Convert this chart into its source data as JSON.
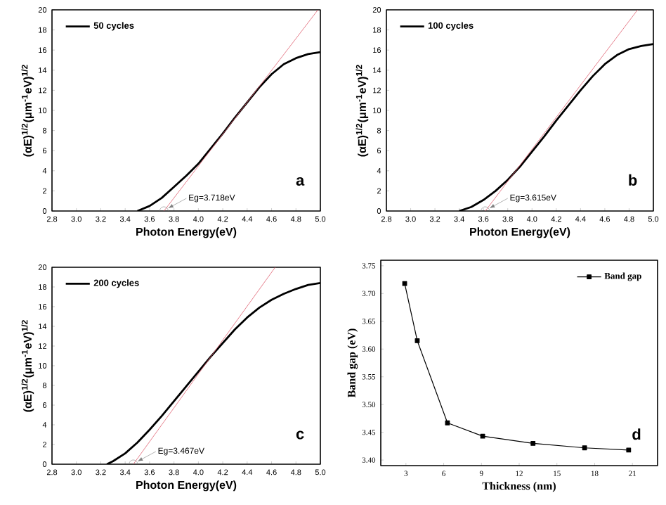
{
  "chart_data": [
    {
      "type": "line",
      "xlabel": "Photon Energy(eV)",
      "ylabel": "(αE)$^{1/2}$(μm$^{-1}$eV)$^{1/2}$",
      "xlim": [
        2.8,
        5.0
      ],
      "ylim": [
        0,
        20
      ],
      "xticks": [
        2.8,
        {
          "value": 3,
          "label": "3.0"
        },
        3.2,
        3.4,
        3.6,
        3.8,
        {
          "value": 4,
          "label": "4.0"
        },
        4.2,
        4.4,
        4.6,
        4.8,
        {
          "value": 5,
          "label": "5.0"
        }
      ],
      "yticks": [
        0,
        2,
        4,
        6,
        8,
        10,
        12,
        14,
        16,
        18,
        20
      ],
      "legend": "top left",
      "series": [
        {
          "name": "50 cycles",
          "color": "#000000",
          "x": [
            3.5,
            3.6,
            3.7,
            3.8,
            3.9,
            4.0,
            4.1,
            4.2,
            4.3,
            4.4,
            4.5,
            4.6,
            4.7,
            4.8,
            4.9,
            5.0
          ],
          "values": [
            0,
            0.5,
            1.3,
            2.4,
            3.5,
            4.7,
            6.2,
            7.7,
            9.3,
            10.8,
            12.3,
            13.6,
            14.6,
            15.2,
            15.6,
            15.8
          ]
        },
        {
          "type": "line",
          "color": "#e06070",
          "x": [
            3.718,
            4.98
          ],
          "values": [
            0,
            20
          ]
        }
      ],
      "annotations": [
        {
          "text": "Eg=3.718eV",
          "x": 3.718,
          "y": 0
        },
        "a"
      ]
    },
    {
      "type": "line",
      "xlabel": "Photon Energy(eV)",
      "ylabel": "(αE)$^{1/2}$(μm$^{-1}$eV)$^{1/2}$",
      "xlim": [
        2.8,
        5.0
      ],
      "ylim": [
        0,
        20
      ],
      "xticks": [
        2.8,
        {
          "value": 3,
          "label": "3.0"
        },
        3.2,
        3.4,
        3.6,
        3.8,
        {
          "value": 4,
          "label": "4.0"
        },
        4.2,
        4.4,
        4.6,
        4.8,
        {
          "value": 5,
          "label": "5.0"
        }
      ],
      "yticks": [
        0,
        2,
        4,
        6,
        8,
        10,
        12,
        14,
        16,
        18,
        20
      ],
      "legend": "top left",
      "series": [
        {
          "name": "100 cycles",
          "color": "#000000",
          "x": [
            3.4,
            3.5,
            3.6,
            3.7,
            3.8,
            3.9,
            4.0,
            4.1,
            4.2,
            4.3,
            4.4,
            4.5,
            4.6,
            4.7,
            4.8,
            4.9,
            5.0
          ],
          "values": [
            0,
            0.4,
            1.1,
            2.0,
            3.1,
            4.4,
            5.9,
            7.4,
            9.0,
            10.5,
            12.0,
            13.4,
            14.6,
            15.5,
            16.1,
            16.4,
            16.6
          ]
        },
        {
          "type": "line",
          "color": "#e06070",
          "x": [
            3.615,
            4.87
          ],
          "values": [
            0,
            20
          ]
        }
      ],
      "annotations": [
        {
          "text": "Eg=3.615eV",
          "x": 3.615,
          "y": 0
        },
        "b"
      ]
    },
    {
      "type": "line",
      "xlabel": "Photon Energy(eV)",
      "ylabel": "(αE)$^{1/2}$(μm$^{-1}$eV)$^{1/2}$",
      "xlim": [
        2.8,
        5.0
      ],
      "ylim": [
        0,
        20
      ],
      "xticks": [
        2.8,
        {
          "value": 3,
          "label": "3.0"
        },
        3.2,
        3.4,
        3.6,
        3.8,
        {
          "value": 4,
          "label": "4.0"
        },
        4.2,
        4.4,
        4.6,
        4.8,
        {
          "value": 5,
          "label": "5.0"
        }
      ],
      "yticks": [
        0,
        2,
        4,
        6,
        8,
        10,
        12,
        14,
        16,
        18,
        20
      ],
      "legend": "top left",
      "series": [
        {
          "name": "200 cycles",
          "color": "#000000",
          "x": [
            3.25,
            3.3,
            3.4,
            3.5,
            3.6,
            3.7,
            3.8,
            3.9,
            4.0,
            4.1,
            4.2,
            4.3,
            4.4,
            4.5,
            4.6,
            4.7,
            4.8,
            4.9,
            5.0
          ],
          "values": [
            0,
            0.3,
            1.1,
            2.2,
            3.5,
            4.9,
            6.4,
            7.9,
            9.4,
            10.9,
            12.3,
            13.7,
            14.9,
            15.9,
            16.7,
            17.3,
            17.8,
            18.2,
            18.4
          ]
        },
        {
          "type": "line",
          "color": "#e06070",
          "x": [
            3.467,
            4.63
          ],
          "values": [
            0,
            20
          ]
        }
      ],
      "annotations": [
        {
          "text": "Eg=3.467eV",
          "x": 3.467,
          "y": 0
        },
        "c"
      ]
    },
    {
      "type": "line",
      "xlabel": "Thickness (nm)",
      "ylabel": "Band gap (eV)",
      "xlim": [
        1,
        23
      ],
      "ylim": [
        3.39,
        3.76
      ],
      "xticks": [
        3,
        6,
        9,
        12,
        15,
        18,
        21
      ],
      "yticks": [
        {
          "value": 3.4,
          "label": "3.40"
        },
        3.45,
        {
          "value": 3.5,
          "label": "3.50"
        },
        3.55,
        {
          "value": 3.6,
          "label": "3.60"
        },
        3.65,
        {
          "value": 3.7,
          "label": "3.70"
        },
        3.75
      ],
      "legend": "top right",
      "marker": "square",
      "series": [
        {
          "name": "Band gap",
          "color": "#000000",
          "x": [
            2.9,
            3.9,
            6.3,
            9.1,
            13.1,
            17.2,
            20.7
          ],
          "values": [
            3.718,
            3.615,
            3.467,
            3.443,
            3.43,
            3.422,
            3.418
          ]
        }
      ],
      "annotations": [
        "d"
      ]
    }
  ]
}
